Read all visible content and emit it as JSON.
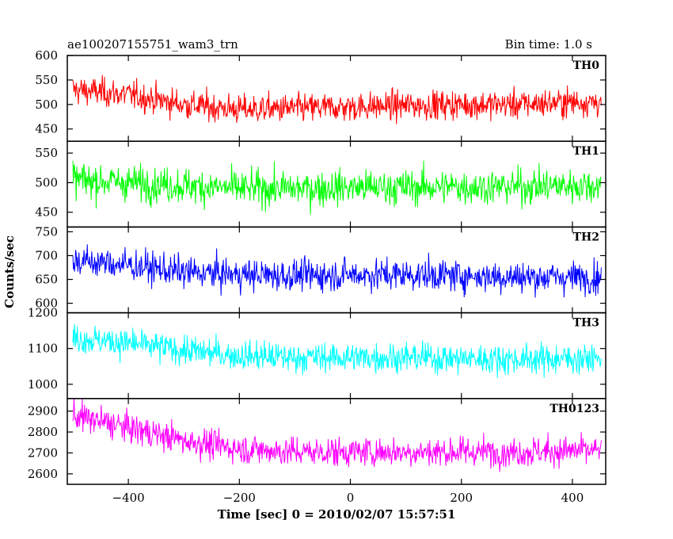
{
  "header": {
    "title": "ae100207155751_wam3_trn",
    "bin_time": "Bin time: 1.0 s"
  },
  "chart_data": {
    "type": "line",
    "xlabel": "Time [sec] 0 = 2010/02/07 15:57:51",
    "ylabel": "Counts/sec",
    "xlim": [
      -510,
      460
    ],
    "x_ticks": [
      -400,
      -200,
      0,
      200,
      400
    ],
    "x_tick_labels": [
      "−400",
      "−200",
      "0",
      "200",
      "400"
    ],
    "x_range": [
      -500,
      452
    ],
    "grid": false,
    "panels": [
      {
        "name": "TH0",
        "color": "#ff0000",
        "ylim": [
          425,
          600
        ],
        "y_ticks": [
          450,
          500,
          550,
          600
        ],
        "y_tick_labels": [
          "450",
          "500",
          "550",
          "600"
        ],
        "trend": [
          [
            -500,
            530
          ],
          [
            -400,
            520
          ],
          [
            -300,
            500
          ],
          [
            -200,
            490
          ],
          [
            -100,
            492
          ],
          [
            0,
            495
          ],
          [
            100,
            498
          ],
          [
            200,
            500
          ],
          [
            300,
            500
          ],
          [
            400,
            505
          ],
          [
            452,
            505
          ]
        ],
        "noise": 25
      },
      {
        "name": "TH1",
        "color": "#00ff00",
        "ylim": [
          425,
          570
        ],
        "y_ticks": [
          450,
          500,
          550
        ],
        "y_tick_labels": [
          "450",
          "500",
          "550"
        ],
        "trend": [
          [
            -500,
            505
          ],
          [
            -400,
            500
          ],
          [
            -300,
            495
          ],
          [
            -200,
            490
          ],
          [
            -100,
            490
          ],
          [
            0,
            492
          ],
          [
            100,
            492
          ],
          [
            200,
            493
          ],
          [
            300,
            493
          ],
          [
            400,
            495
          ],
          [
            452,
            495
          ]
        ],
        "noise": 25
      },
      {
        "name": "TH2",
        "color": "#0000ff",
        "ylim": [
          580,
          760
        ],
        "y_ticks": [
          600,
          650,
          700,
          750
        ],
        "y_tick_labels": [
          "600",
          "650",
          "700",
          "750"
        ],
        "trend": [
          [
            -500,
            690
          ],
          [
            -400,
            680
          ],
          [
            -300,
            665
          ],
          [
            -200,
            660
          ],
          [
            -100,
            658
          ],
          [
            0,
            660
          ],
          [
            100,
            660
          ],
          [
            200,
            658
          ],
          [
            300,
            655
          ],
          [
            400,
            655
          ],
          [
            452,
            655
          ]
        ],
        "noise": 28
      },
      {
        "name": "TH3",
        "color": "#00ffff",
        "ylim": [
          960,
          1200
        ],
        "y_ticks": [
          1000,
          1100,
          1200
        ],
        "y_tick_labels": [
          "1000",
          "1100",
          "1200"
        ],
        "trend": [
          [
            -500,
            1130
          ],
          [
            -400,
            1115
          ],
          [
            -300,
            1095
          ],
          [
            -200,
            1080
          ],
          [
            -100,
            1075
          ],
          [
            0,
            1075
          ],
          [
            100,
            1075
          ],
          [
            200,
            1072
          ],
          [
            300,
            1070
          ],
          [
            400,
            1072
          ],
          [
            452,
            1070
          ]
        ],
        "noise": 35
      },
      {
        "name": "TH0123",
        "color": "#ff00ff",
        "ylim": [
          2550,
          2960
        ],
        "y_ticks": [
          2600,
          2700,
          2800,
          2900
        ],
        "y_tick_labels": [
          "2600",
          "2700",
          "2800",
          "2900"
        ],
        "trend": [
          [
            -500,
            2880
          ],
          [
            -400,
            2820
          ],
          [
            -300,
            2760
          ],
          [
            -200,
            2720
          ],
          [
            -100,
            2705
          ],
          [
            0,
            2705
          ],
          [
            100,
            2705
          ],
          [
            200,
            2705
          ],
          [
            300,
            2705
          ],
          [
            400,
            2710
          ],
          [
            452,
            2710
          ]
        ],
        "noise": 60
      }
    ]
  }
}
